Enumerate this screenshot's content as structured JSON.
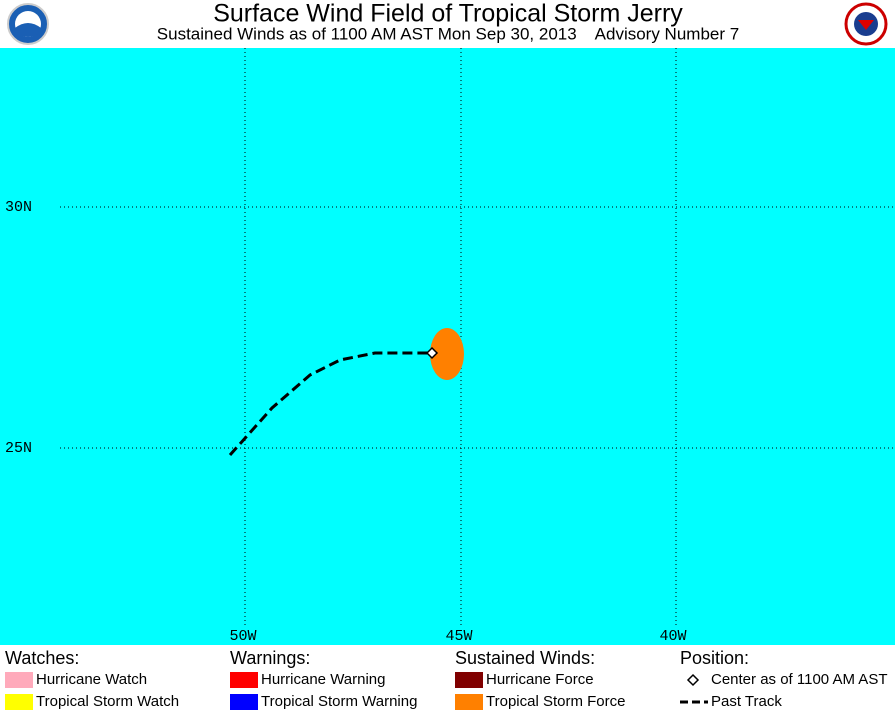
{
  "header": {
    "title": "Surface Wind Field of Tropical Storm Jerry",
    "subtitle": "Sustained Winds as of 1100 AM AST Mon Sep 30, 2013    Advisory Number 7"
  },
  "map": {
    "lat_labels": [
      "30N",
      "25N"
    ],
    "lon_labels": [
      "50W",
      "45W",
      "40W"
    ]
  },
  "legend": {
    "groups": [
      {
        "title": "Watches:",
        "items": [
          "Hurricane Watch",
          "Tropical Storm Watch"
        ]
      },
      {
        "title": "Warnings:",
        "items": [
          "Hurricane Warning",
          "Tropical Storm Warning"
        ]
      },
      {
        "title": "Sustained Winds:",
        "items": [
          "Hurricane Force",
          "Tropical Storm Force"
        ]
      },
      {
        "title": "Position:",
        "items": [
          "Center as of 1100 AM AST",
          "Past Track"
        ]
      }
    ]
  }
}
